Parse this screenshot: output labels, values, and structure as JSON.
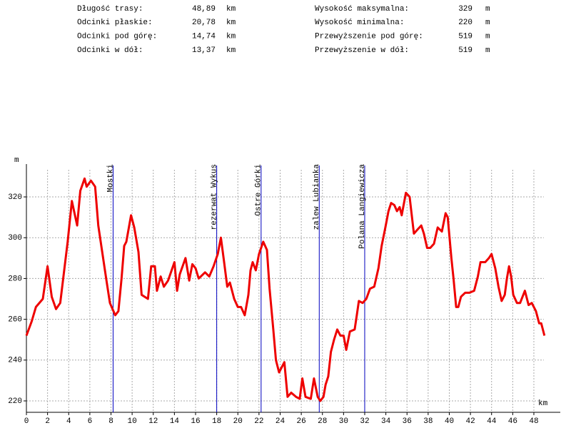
{
  "stats": [
    {
      "label": "Długość trasy:",
      "value": "48,89",
      "unit": "km"
    },
    {
      "label": "Odcinki płaskie:",
      "value": "20,78",
      "unit": "km"
    },
    {
      "label": "Odcinki pod górę:",
      "value": "14,74",
      "unit": "km"
    },
    {
      "label": "Odcinki w dół:",
      "value": "13,37",
      "unit": "km"
    },
    {
      "label": "Wysokość maksymalna:",
      "value": "329",
      "unit": "m"
    },
    {
      "label": "Wysokość minimalna:",
      "value": "220",
      "unit": "m"
    },
    {
      "label": "Przewyższenie pod górę:",
      "value": "519",
      "unit": "m"
    },
    {
      "label": "Przewyższenie w dół:",
      "value": "519",
      "unit": "m"
    }
  ],
  "chart_data": {
    "type": "line",
    "xlabel": "km",
    "ylabel": "m",
    "xlim": [
      0,
      50.5
    ],
    "ylim": [
      214.4,
      333.3
    ],
    "xticks": [
      0,
      2,
      4,
      6,
      8,
      10,
      12,
      14,
      16,
      18,
      20,
      22,
      24,
      26,
      28,
      30,
      32,
      34,
      36,
      38,
      40,
      42,
      44,
      46,
      48
    ],
    "yticks": [
      220,
      240,
      260,
      280,
      300,
      320
    ],
    "grid": true,
    "waypoints": [
      {
        "name": "Mostki",
        "x": 8.2
      },
      {
        "name": "rezerwat Wykus",
        "x": 18.0
      },
      {
        "name": "Ostre Górki",
        "x": 22.2
      },
      {
        "name": "zalew Lubianka",
        "x": 27.7
      },
      {
        "name": "Polana Langiewicza",
        "x": 32.0
      }
    ],
    "waypoint_color": "#0000c0",
    "series": [
      {
        "name": "profile",
        "color": "#ee0000",
        "x": [
          0,
          0.5,
          0.9,
          1.55,
          2.0,
          2.4,
          2.8,
          3.2,
          3.9,
          4.3,
          4.8,
          5.1,
          5.5,
          5.7,
          6.1,
          6.5,
          6.8,
          7.4,
          7.6,
          7.9,
          8.4,
          8.7,
          9.0,
          9.25,
          9.45,
          9.9,
          10.2,
          10.6,
          10.9,
          11.5,
          11.8,
          12.15,
          12.35,
          12.7,
          13.0,
          13.4,
          14.0,
          14.25,
          14.5,
          15.05,
          15.4,
          15.7,
          16.0,
          16.3,
          16.9,
          17.3,
          17.7,
          18.1,
          18.4,
          18.7,
          19.0,
          19.25,
          19.65,
          20.0,
          20.3,
          20.65,
          21.0,
          21.2,
          21.4,
          21.7,
          22.0,
          22.4,
          22.75,
          23.0,
          23.35,
          23.6,
          23.9,
          24.4,
          24.7,
          25.05,
          25.5,
          25.85,
          26.1,
          26.4,
          26.9,
          27.2,
          27.55,
          27.8,
          28.1,
          28.3,
          28.55,
          28.8,
          29.1,
          29.4,
          29.7,
          30.0,
          30.25,
          30.6,
          31.05,
          31.25,
          31.45,
          31.8,
          32.15,
          32.5,
          32.9,
          33.3,
          33.6,
          33.95,
          34.25,
          34.5,
          34.8,
          35.05,
          35.3,
          35.5,
          35.9,
          36.25,
          36.45,
          36.65,
          37.0,
          37.35,
          37.6,
          37.9,
          38.2,
          38.55,
          38.9,
          39.3,
          39.65,
          39.85,
          40.2,
          40.4,
          40.65,
          40.85,
          41.1,
          41.5,
          41.9,
          42.35,
          42.7,
          42.95,
          43.4,
          43.75,
          44.0,
          44.35,
          44.65,
          44.95,
          45.25,
          45.45,
          45.65,
          45.85,
          46.05,
          46.4,
          46.7,
          47.15,
          47.5,
          47.8,
          48.2,
          48.5,
          48.7,
          49.0
        ],
        "values": [
          252,
          259,
          266,
          270,
          286,
          271,
          265,
          268,
          298,
          318,
          306,
          323,
          329,
          325,
          328,
          325,
          306,
          285,
          278,
          268,
          262,
          264,
          280,
          296,
          298,
          311,
          305,
          293,
          272,
          270,
          286,
          286,
          274,
          281,
          276,
          279,
          288,
          274,
          282,
          290,
          279,
          287,
          285,
          280,
          283,
          281,
          286,
          292,
          300,
          288,
          276,
          278,
          270,
          266,
          266,
          262,
          272,
          284,
          288,
          284,
          292,
          298,
          294,
          275,
          255,
          240,
          234,
          239,
          222,
          224,
          222,
          221,
          231,
          222,
          221,
          231,
          222,
          220,
          222,
          228,
          232,
          244,
          250,
          255,
          252,
          252,
          245,
          254,
          255,
          262,
          269,
          268,
          270,
          275,
          276,
          285,
          296,
          305,
          313,
          317,
          316,
          313,
          315,
          311,
          322,
          320,
          311,
          302,
          304,
          306,
          302,
          295,
          295,
          297,
          305,
          303,
          312,
          310,
          290,
          280,
          266,
          266,
          271,
          273,
          273,
          274,
          281,
          288,
          288,
          290,
          292,
          285,
          276,
          269,
          272,
          280,
          286,
          281,
          272,
          268,
          268,
          274,
          267,
          268,
          264,
          258,
          258,
          252
        ]
      }
    ]
  }
}
